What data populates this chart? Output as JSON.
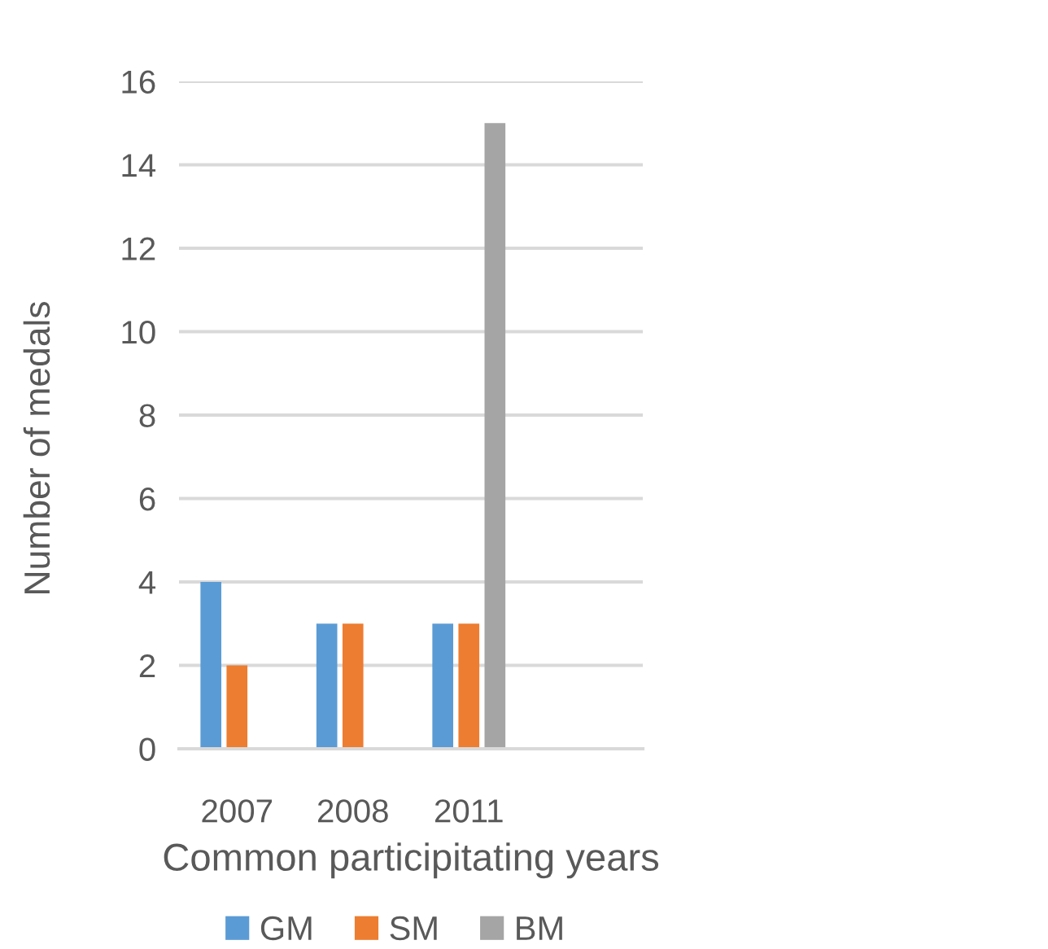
{
  "chart_data": {
    "type": "bar",
    "categories": [
      "2007",
      "2008",
      "2011",
      null
    ],
    "series": [
      {
        "name": "GM",
        "color": "#5b9bd5",
        "values": [
          4,
          3,
          3,
          null
        ]
      },
      {
        "name": "SM",
        "color": "#ed7d31",
        "values": [
          2,
          3,
          3,
          null
        ]
      },
      {
        "name": "BM",
        "color": "#a5a5a5",
        "values": [
          null,
          null,
          15,
          null
        ]
      }
    ],
    "xlabel": "Common participitating years",
    "ylabel": "Number of medals",
    "ylim": [
      0,
      16
    ],
    "yticks": [
      0,
      2,
      4,
      6,
      8,
      10,
      12,
      14,
      16
    ],
    "grid": "y",
    "legend": "bottom"
  }
}
